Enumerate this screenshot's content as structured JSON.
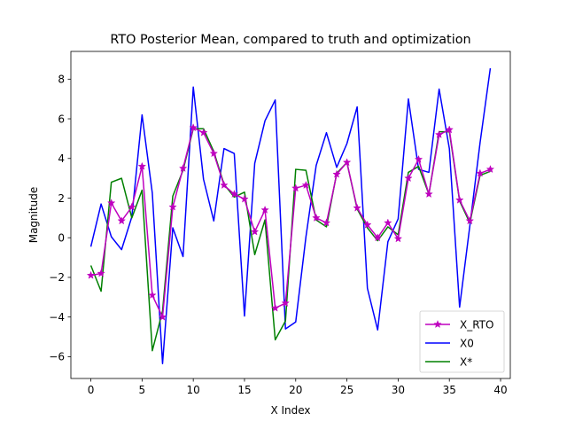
{
  "chart_data": {
    "type": "line",
    "title": "RTO Posterior Mean, compared to truth and optimization",
    "xlabel": "X Index",
    "ylabel": "Magnitude",
    "xlim": [
      -1.95,
      40.95
    ],
    "ylim": [
      -7.1,
      9.4
    ],
    "xticks": [
      0,
      5,
      10,
      15,
      20,
      25,
      30,
      35,
      40
    ],
    "yticks": [
      -6,
      -4,
      -2,
      0,
      2,
      4,
      6,
      8
    ],
    "xtick_labels": [
      "0",
      "5",
      "10",
      "15",
      "20",
      "25",
      "30",
      "35",
      "40"
    ],
    "ytick_labels": [
      "−6",
      "−4",
      "−2",
      "0",
      "2",
      "4",
      "6",
      "8"
    ],
    "grid": false,
    "legend_position": "lower right",
    "x": [
      0,
      1,
      2,
      3,
      4,
      5,
      6,
      7,
      8,
      9,
      10,
      11,
      12,
      13,
      14,
      15,
      16,
      17,
      18,
      19,
      20,
      21,
      22,
      23,
      24,
      25,
      26,
      27,
      28,
      29,
      30,
      31,
      32,
      33,
      34,
      35,
      36,
      37,
      38,
      39
    ],
    "series": [
      {
        "name": "X_RTO",
        "color": "#bf00bf",
        "marker": "star",
        "values": [
          -1.9,
          -1.8,
          1.75,
          0.85,
          1.55,
          3.6,
          -2.9,
          -4.0,
          1.55,
          3.5,
          5.55,
          5.3,
          4.25,
          2.65,
          2.2,
          1.95,
          0.3,
          1.4,
          -3.55,
          -3.3,
          2.5,
          2.65,
          1.0,
          0.75,
          3.2,
          3.8,
          1.5,
          0.65,
          0.0,
          0.75,
          -0.05,
          3.0,
          3.95,
          2.2,
          5.2,
          5.45,
          1.9,
          0.85,
          3.25,
          3.45
        ]
      },
      {
        "name": "X0",
        "color": "#0000ff",
        "marker": "none",
        "values": [
          -0.45,
          1.7,
          0.05,
          -0.6,
          1.05,
          6.2,
          2.25,
          -6.35,
          0.5,
          -0.95,
          7.6,
          2.95,
          0.85,
          4.5,
          4.25,
          -3.95,
          3.75,
          5.9,
          6.95,
          -4.6,
          -4.25,
          0.05,
          3.65,
          5.3,
          3.55,
          4.75,
          6.6,
          -2.55,
          -4.65,
          -0.2,
          0.95,
          7.0,
          3.45,
          3.3,
          7.5,
          4.5,
          -3.5,
          0.6,
          4.8,
          8.55
        ]
      },
      {
        "name": "X*",
        "color": "#008000",
        "marker": "none",
        "values": [
          -1.4,
          -2.7,
          2.8,
          3.0,
          1.0,
          2.4,
          -5.7,
          -3.7,
          2.1,
          3.4,
          5.5,
          5.5,
          4.35,
          2.7,
          2.05,
          2.3,
          -0.85,
          0.9,
          -5.15,
          -4.2,
          3.45,
          3.4,
          0.9,
          0.55,
          3.25,
          3.8,
          1.45,
          0.5,
          -0.15,
          0.55,
          0.15,
          3.3,
          3.6,
          2.2,
          5.35,
          5.35,
          1.85,
          0.75,
          3.15,
          3.35
        ]
      }
    ]
  }
}
